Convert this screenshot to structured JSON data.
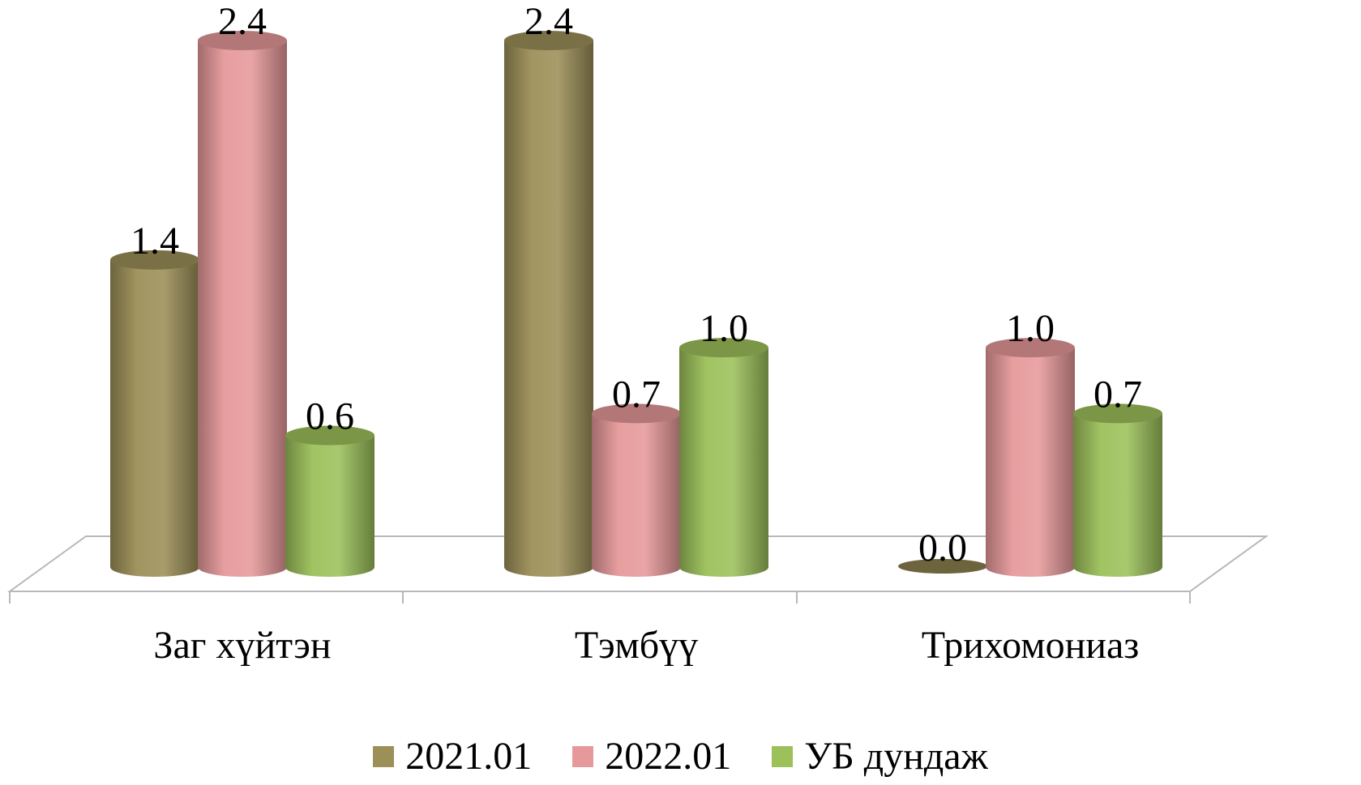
{
  "chart_data": {
    "type": "bar",
    "style": "3d-cylinder",
    "categories": [
      "Заг хүйтэн",
      "Тэмбүү",
      "Трихомониаз"
    ],
    "series": [
      {
        "name": "2021.01",
        "values": [
          1.4,
          2.4,
          0.0
        ],
        "labels": [
          "1.4",
          "2.4",
          "0.0"
        ],
        "color": "#9c8f58"
      },
      {
        "name": "2022.01",
        "values": [
          2.4,
          0.7,
          1.0
        ],
        "labels": [
          "2.4",
          "0.7",
          "1.0"
        ],
        "color": "#e6999a"
      },
      {
        "name": "УБ дундаж",
        "values": [
          0.6,
          1.0,
          0.7
        ],
        "labels": [
          "0.6",
          "1.0",
          "0.7"
        ],
        "color": "#9cc05a"
      }
    ],
    "title": "",
    "xlabel": "",
    "ylabel": "",
    "ylim": [
      0,
      2.4
    ],
    "grid": false,
    "legend_position": "bottom"
  }
}
